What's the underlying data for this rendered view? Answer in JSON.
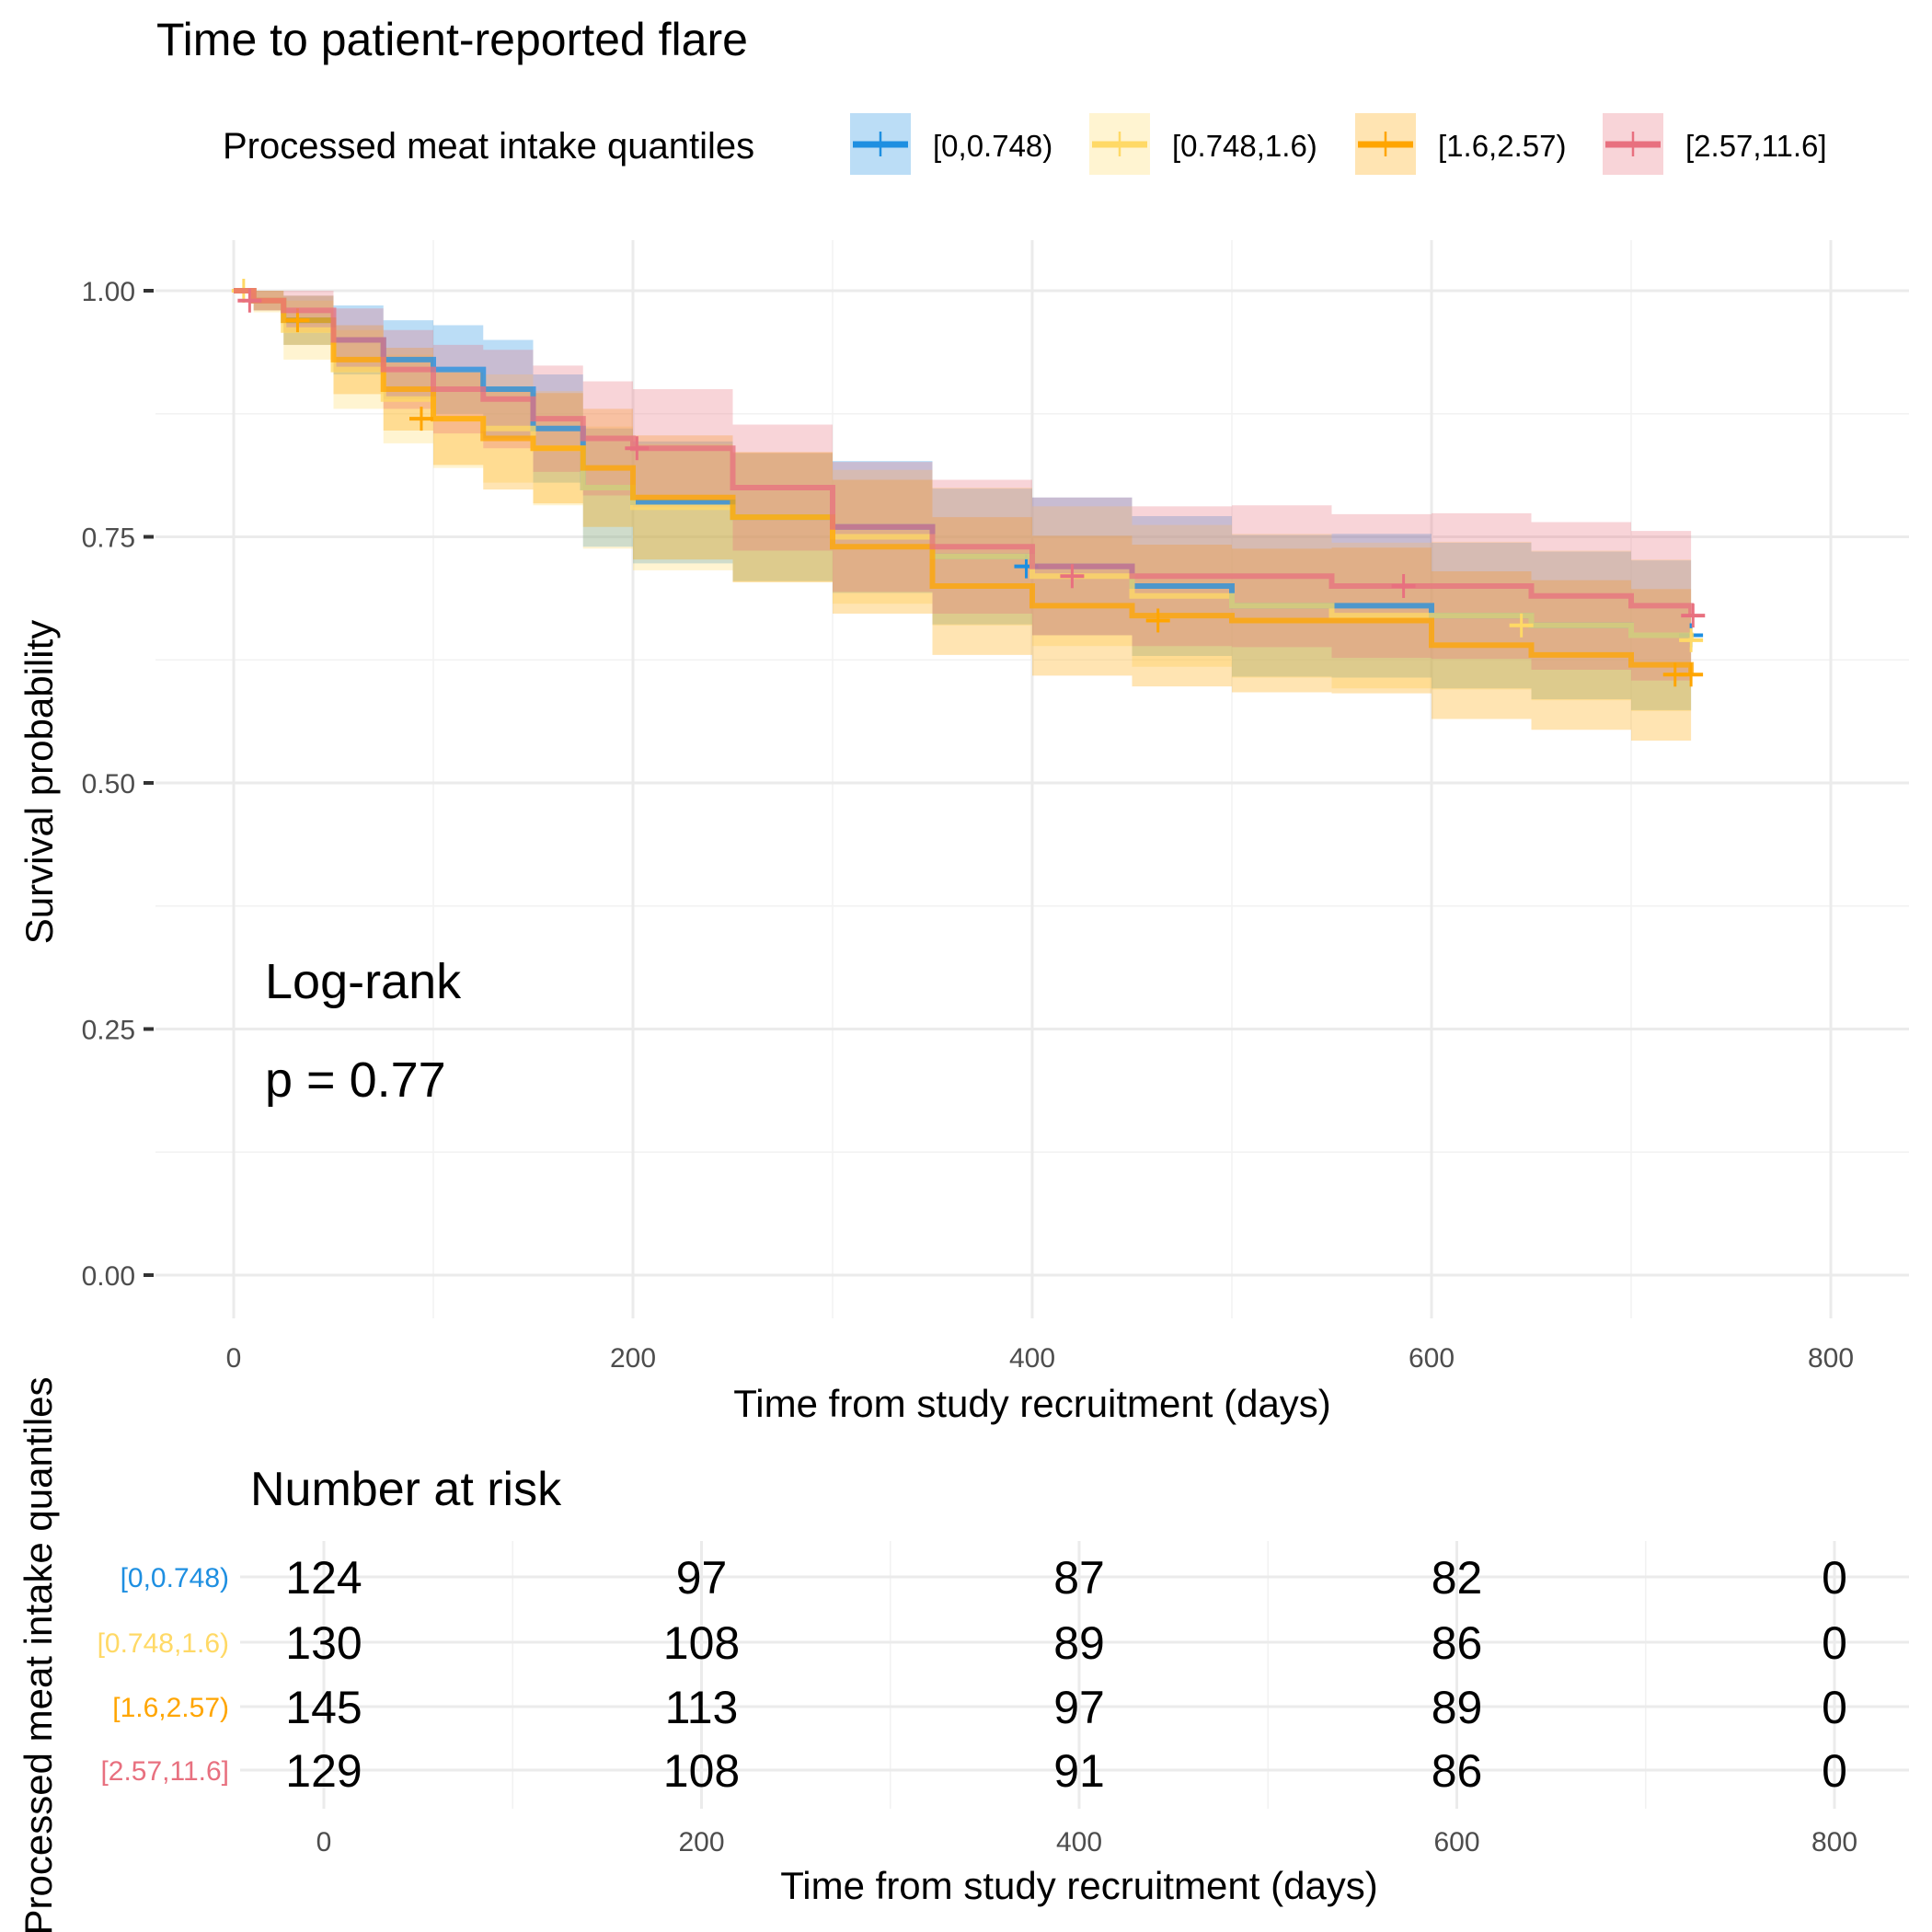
{
  "chart_data": {
    "type": "line",
    "subtype": "kaplan-meier",
    "title": "Time to patient-reported flare",
    "legend": {
      "title": "Processed meat intake quantiles",
      "placement": "top",
      "labels": [
        "[0,0.748)",
        "[0.748,1.6)",
        "[1.6,2.57)",
        "[2.57,11.6]"
      ]
    },
    "xlabel": "Time from study recruitment (days)",
    "ylabel": "Survival probability",
    "xlim": [
      -40,
      840
    ],
    "ylim": [
      -0.04,
      1.04
    ],
    "xticks": [
      "0",
      "200",
      "400",
      "600",
      "800"
    ],
    "yticks": [
      "0.00",
      "0.25",
      "0.50",
      "0.75",
      "1.00"
    ],
    "annotation": {
      "line1": "Log-rank",
      "line2": "p = 0.77"
    },
    "time": [
      0,
      10,
      25,
      50,
      75,
      100,
      125,
      150,
      175,
      200,
      250,
      300,
      350,
      400,
      450,
      500,
      550,
      600,
      650,
      700,
      730
    ],
    "series": [
      {
        "name": "[0,0.748)",
        "color": "#1E8FE1",
        "survival": [
          1,
          0.99,
          0.97,
          0.95,
          0.93,
          0.92,
          0.9,
          0.86,
          0.8,
          0.785,
          0.77,
          0.76,
          0.73,
          0.72,
          0.7,
          0.68,
          0.68,
          0.67,
          0.66,
          0.65,
          0.65
        ],
        "ci_halfwidth": [
          0,
          0.01,
          0.025,
          0.035,
          0.04,
          0.045,
          0.05,
          0.055,
          0.06,
          0.062,
          0.065,
          0.067,
          0.069,
          0.07,
          0.071,
          0.072,
          0.073,
          0.074,
          0.075,
          0.076,
          0.078
        ],
        "censored": [
          [
            397,
            0.72
          ],
          [
            730,
            0.65
          ]
        ]
      },
      {
        "name": "[0.748,1.6)",
        "color": "#FFD966",
        "survival": [
          1,
          0.99,
          0.96,
          0.92,
          0.89,
          0.87,
          0.86,
          0.84,
          0.8,
          0.78,
          0.77,
          0.75,
          0.73,
          0.71,
          0.69,
          0.68,
          0.67,
          0.67,
          0.66,
          0.65,
          0.645
        ],
        "ci_halfwidth": [
          0,
          0.012,
          0.03,
          0.04,
          0.045,
          0.05,
          0.055,
          0.058,
          0.062,
          0.064,
          0.066,
          0.068,
          0.07,
          0.071,
          0.072,
          0.073,
          0.074,
          0.075,
          0.076,
          0.077,
          0.079
        ],
        "censored": [
          [
            5,
            1.0
          ],
          [
            645,
            0.66
          ],
          [
            730,
            0.645
          ]
        ]
      },
      {
        "name": "[1.6,2.57)",
        "color": "#FFA500",
        "survival": [
          1,
          0.99,
          0.97,
          0.93,
          0.9,
          0.87,
          0.85,
          0.84,
          0.82,
          0.79,
          0.77,
          0.74,
          0.7,
          0.68,
          0.67,
          0.665,
          0.665,
          0.64,
          0.63,
          0.62,
          0.61
        ],
        "ci_halfwidth": [
          0,
          0.01,
          0.025,
          0.035,
          0.042,
          0.047,
          0.052,
          0.056,
          0.06,
          0.063,
          0.066,
          0.068,
          0.07,
          0.071,
          0.072,
          0.073,
          0.074,
          0.075,
          0.076,
          0.077,
          0.078
        ],
        "censored": [
          [
            32,
            0.97
          ],
          [
            94,
            0.87
          ],
          [
            463,
            0.665
          ],
          [
            722,
            0.61
          ],
          [
            730,
            0.61
          ]
        ]
      },
      {
        "name": "[2.57,11.6]",
        "color": "#E8707F",
        "survival": [
          1,
          0.99,
          0.98,
          0.95,
          0.92,
          0.9,
          0.89,
          0.87,
          0.85,
          0.84,
          0.8,
          0.76,
          0.74,
          0.72,
          0.71,
          0.71,
          0.7,
          0.7,
          0.69,
          0.68,
          0.67
        ],
        "ci_halfwidth": [
          0,
          0.01,
          0.022,
          0.032,
          0.04,
          0.045,
          0.05,
          0.054,
          0.058,
          0.06,
          0.064,
          0.066,
          0.068,
          0.07,
          0.071,
          0.072,
          0.073,
          0.074,
          0.075,
          0.076,
          0.078
        ],
        "censored": [
          [
            8,
            0.99
          ],
          [
            202,
            0.84
          ],
          [
            420,
            0.71
          ],
          [
            586,
            0.7
          ],
          [
            731,
            0.67
          ]
        ]
      }
    ],
    "risk_table": {
      "title": "Number at risk",
      "ylabel": "Processed meat intake quantiles",
      "xlabel": "Time from study recruitment (days)",
      "times": [
        "0",
        "200",
        "400",
        "600",
        "800"
      ],
      "rows": [
        {
          "label": "[0,0.748)",
          "counts": [
            "124",
            "97",
            "87",
            "82",
            "0"
          ]
        },
        {
          "label": "[0.748,1.6)",
          "counts": [
            "130",
            "108",
            "89",
            "86",
            "0"
          ]
        },
        {
          "label": "[1.6,2.57)",
          "counts": [
            "145",
            "113",
            "97",
            "89",
            "0"
          ]
        },
        {
          "label": "[2.57,11.6]",
          "counts": [
            "129",
            "108",
            "91",
            "86",
            "0"
          ]
        }
      ]
    }
  }
}
